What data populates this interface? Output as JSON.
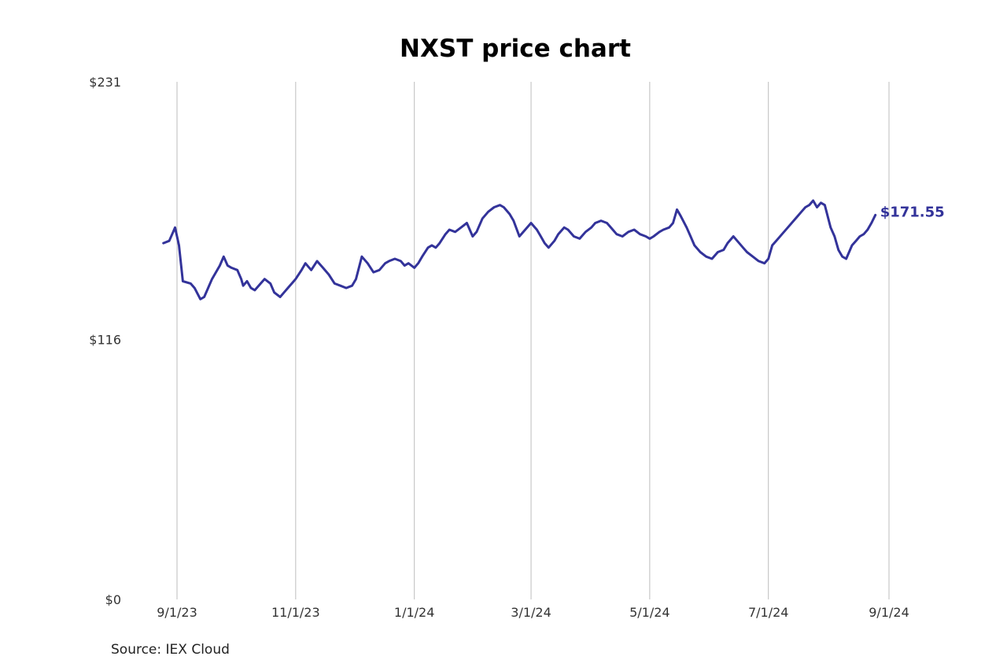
{
  "chart_data": {
    "type": "line",
    "title": "NXST price chart",
    "xlabel": "",
    "ylabel": "",
    "ylim": [
      0,
      231
    ],
    "y_ticks": [
      {
        "value": 0,
        "label": "$0"
      },
      {
        "value": 116,
        "label": "$116"
      },
      {
        "value": 231,
        "label": "$231"
      }
    ],
    "x_ticks": [
      {
        "date": "2023-09-01",
        "label": "9/1/23"
      },
      {
        "date": "2023-11-01",
        "label": "11/1/23"
      },
      {
        "date": "2024-01-01",
        "label": "1/1/24"
      },
      {
        "date": "2024-03-01",
        "label": "3/1/24"
      },
      {
        "date": "2024-05-01",
        "label": "5/1/24"
      },
      {
        "date": "2024-07-01",
        "label": "7/1/24"
      },
      {
        "date": "2024-09-01",
        "label": "9/1/24"
      }
    ],
    "xlim": [
      "2023-09-01",
      "2024-09-01"
    ],
    "grid": "vertical",
    "line_color": "#33339a",
    "last_value_label": "$171.55",
    "series": [
      {
        "points": [
          [
            "2023-08-25",
            159
          ],
          [
            "2023-08-28",
            160
          ],
          [
            "2023-08-30",
            164
          ],
          [
            "2023-08-31",
            166
          ],
          [
            "2023-09-02",
            158
          ],
          [
            "2023-09-04",
            142
          ],
          [
            "2023-09-08",
            141
          ],
          [
            "2023-09-10",
            139
          ],
          [
            "2023-09-13",
            134
          ],
          [
            "2023-09-15",
            135
          ],
          [
            "2023-09-19",
            143
          ],
          [
            "2023-09-23",
            149
          ],
          [
            "2023-09-25",
            153
          ],
          [
            "2023-09-27",
            149
          ],
          [
            "2023-09-29",
            148
          ],
          [
            "2023-10-02",
            147
          ],
          [
            "2023-10-04",
            143
          ],
          [
            "2023-10-05",
            140
          ],
          [
            "2023-10-07",
            142
          ],
          [
            "2023-10-09",
            139
          ],
          [
            "2023-10-11",
            138
          ],
          [
            "2023-10-14",
            141
          ],
          [
            "2023-10-16",
            143
          ],
          [
            "2023-10-19",
            141
          ],
          [
            "2023-10-21",
            137
          ],
          [
            "2023-10-24",
            135
          ],
          [
            "2023-10-26",
            137
          ],
          [
            "2023-10-28",
            139
          ],
          [
            "2023-10-31",
            142
          ],
          [
            "2023-11-01",
            143
          ],
          [
            "2023-11-04",
            147
          ],
          [
            "2023-11-06",
            150
          ],
          [
            "2023-11-09",
            147
          ],
          [
            "2023-11-12",
            151
          ],
          [
            "2023-11-15",
            148
          ],
          [
            "2023-11-18",
            145
          ],
          [
            "2023-11-21",
            141
          ],
          [
            "2023-11-24",
            140
          ],
          [
            "2023-11-27",
            139
          ],
          [
            "2023-11-30",
            140
          ],
          [
            "2023-12-02",
            143
          ],
          [
            "2023-12-05",
            153
          ],
          [
            "2023-12-08",
            150
          ],
          [
            "2023-12-11",
            146
          ],
          [
            "2023-12-14",
            147
          ],
          [
            "2023-12-17",
            150
          ],
          [
            "2023-12-19",
            151
          ],
          [
            "2023-12-22",
            152
          ],
          [
            "2023-12-25",
            151
          ],
          [
            "2023-12-27",
            149
          ],
          [
            "2023-12-29",
            150
          ],
          [
            "2024-01-01",
            148
          ],
          [
            "2024-01-03",
            150
          ],
          [
            "2024-01-05",
            153
          ],
          [
            "2024-01-08",
            157
          ],
          [
            "2024-01-10",
            158
          ],
          [
            "2024-01-12",
            157
          ],
          [
            "2024-01-14",
            159
          ],
          [
            "2024-01-17",
            163
          ],
          [
            "2024-01-19",
            165
          ],
          [
            "2024-01-22",
            164
          ],
          [
            "2024-01-25",
            166
          ],
          [
            "2024-01-28",
            168
          ],
          [
            "2024-01-31",
            162
          ],
          [
            "2024-02-02",
            164
          ],
          [
            "2024-02-05",
            170
          ],
          [
            "2024-02-08",
            173
          ],
          [
            "2024-02-11",
            175
          ],
          [
            "2024-02-14",
            176
          ],
          [
            "2024-02-16",
            175
          ],
          [
            "2024-02-19",
            172
          ],
          [
            "2024-02-21",
            169
          ],
          [
            "2024-02-24",
            162
          ],
          [
            "2024-02-27",
            165
          ],
          [
            "2024-03-01",
            168
          ],
          [
            "2024-03-04",
            165
          ],
          [
            "2024-03-06",
            162
          ],
          [
            "2024-03-08",
            159
          ],
          [
            "2024-03-10",
            157
          ],
          [
            "2024-03-13",
            160
          ],
          [
            "2024-03-15",
            163
          ],
          [
            "2024-03-18",
            166
          ],
          [
            "2024-03-20",
            165
          ],
          [
            "2024-03-23",
            162
          ],
          [
            "2024-03-26",
            161
          ],
          [
            "2024-03-29",
            164
          ],
          [
            "2024-04-01",
            166
          ],
          [
            "2024-04-03",
            168
          ],
          [
            "2024-04-06",
            169
          ],
          [
            "2024-04-09",
            168
          ],
          [
            "2024-04-12",
            165
          ],
          [
            "2024-04-14",
            163
          ],
          [
            "2024-04-17",
            162
          ],
          [
            "2024-04-20",
            164
          ],
          [
            "2024-04-23",
            165
          ],
          [
            "2024-04-26",
            163
          ],
          [
            "2024-04-29",
            162
          ],
          [
            "2024-05-01",
            161
          ],
          [
            "2024-05-03",
            162
          ],
          [
            "2024-05-06",
            164
          ],
          [
            "2024-05-08",
            165
          ],
          [
            "2024-05-11",
            166
          ],
          [
            "2024-05-13",
            168
          ],
          [
            "2024-05-15",
            174
          ],
          [
            "2024-05-17",
            171
          ],
          [
            "2024-05-20",
            166
          ],
          [
            "2024-05-22",
            162
          ],
          [
            "2024-05-24",
            158
          ],
          [
            "2024-05-27",
            155
          ],
          [
            "2024-05-30",
            153
          ],
          [
            "2024-06-02",
            152
          ],
          [
            "2024-06-05",
            155
          ],
          [
            "2024-06-08",
            156
          ],
          [
            "2024-06-10",
            159
          ],
          [
            "2024-06-13",
            162
          ],
          [
            "2024-06-15",
            160
          ],
          [
            "2024-06-18",
            157
          ],
          [
            "2024-06-20",
            155
          ],
          [
            "2024-06-23",
            153
          ],
          [
            "2024-06-26",
            151
          ],
          [
            "2024-06-29",
            150
          ],
          [
            "2024-07-01",
            152
          ],
          [
            "2024-07-03",
            158
          ],
          [
            "2024-07-05",
            160
          ],
          [
            "2024-07-08",
            163
          ],
          [
            "2024-07-11",
            166
          ],
          [
            "2024-07-14",
            169
          ],
          [
            "2024-07-16",
            171
          ],
          [
            "2024-07-18",
            173
          ],
          [
            "2024-07-20",
            175
          ],
          [
            "2024-07-22",
            176
          ],
          [
            "2024-07-24",
            178
          ],
          [
            "2024-07-26",
            175
          ],
          [
            "2024-07-28",
            177
          ],
          [
            "2024-07-30",
            176
          ],
          [
            "2024-08-02",
            166
          ],
          [
            "2024-08-04",
            162
          ],
          [
            "2024-08-06",
            156
          ],
          [
            "2024-08-08",
            153
          ],
          [
            "2024-08-10",
            152
          ],
          [
            "2024-08-13",
            158
          ],
          [
            "2024-08-15",
            160
          ],
          [
            "2024-08-17",
            162
          ],
          [
            "2024-08-19",
            163
          ],
          [
            "2024-08-21",
            165
          ],
          [
            "2024-08-23",
            168
          ],
          [
            "2024-08-25",
            171.55
          ]
        ]
      }
    ]
  },
  "source": "Source: IEX Cloud"
}
